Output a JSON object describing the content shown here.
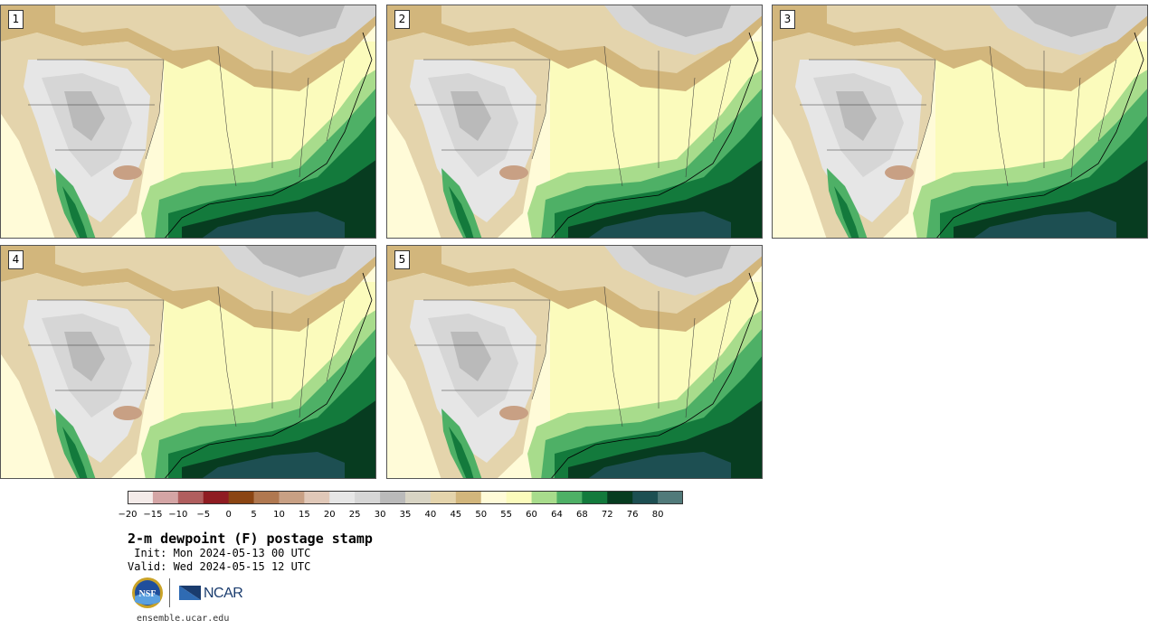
{
  "panels": [
    {
      "label": "1"
    },
    {
      "label": "2"
    },
    {
      "label": "3"
    },
    {
      "label": "4"
    },
    {
      "label": "5"
    }
  ],
  "colorbar": {
    "ticks": [
      "−20",
      "−15",
      "−10",
      "−5",
      "0",
      "5",
      "10",
      "15",
      "20",
      "25",
      "30",
      "35",
      "40",
      "45",
      "50",
      "55",
      "60",
      "64",
      "68",
      "72",
      "76",
      "80"
    ],
    "colors": [
      "#f4ebe9",
      "#d4a5a5",
      "#b05e5e",
      "#8f1c22",
      "#8b4513",
      "#b07850",
      "#c8a084",
      "#e0c8b8",
      "#e6e6e6",
      "#d6d6d6",
      "#bababa",
      "#d8d4c4",
      "#e4d4ac",
      "#d2b67c",
      "#fffbd8",
      "#fbfbbc",
      "#a8dc8c",
      "#4eb066",
      "#137a3c",
      "#073c20",
      "#1d4f52",
      "#517a7a"
    ]
  },
  "title": "2-m dewpoint (F) postage stamp",
  "init": " Init: Mon 2024-05-13 00 UTC",
  "valid": "Valid: Wed 2024-05-15 12 UTC",
  "logos": {
    "nsf": "NSF",
    "ncar": "NCAR"
  },
  "site": "ensemble.ucar.edu"
}
